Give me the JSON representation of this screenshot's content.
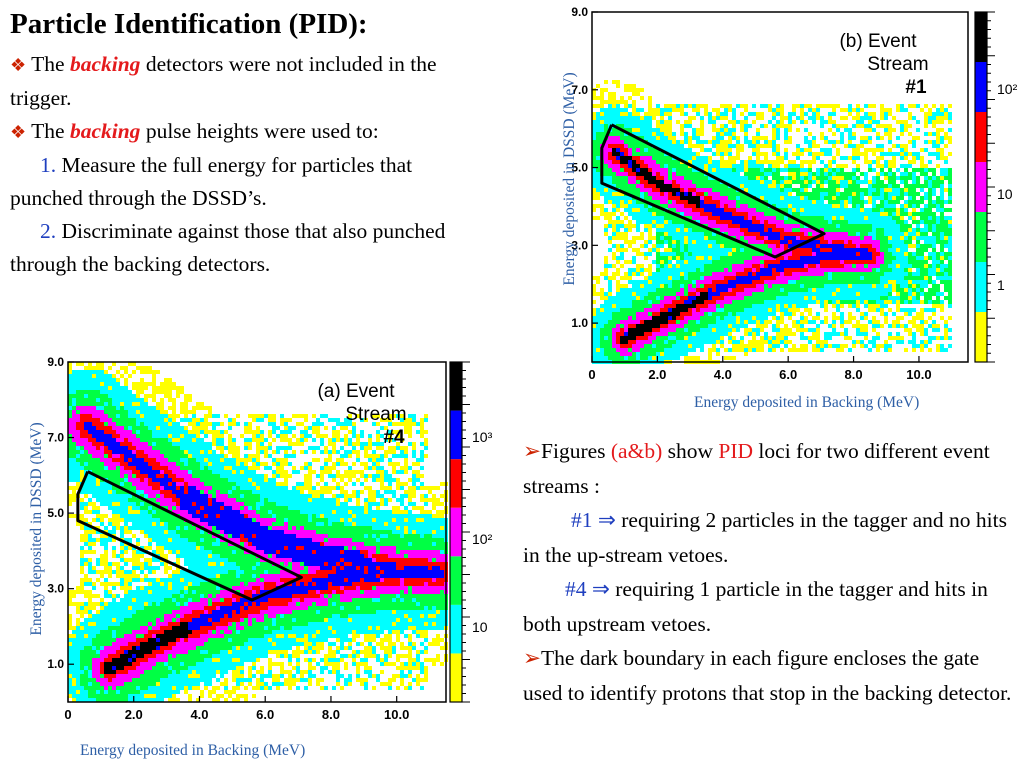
{
  "title": "Particle Identification (PID):",
  "left_text": {
    "b1_pre": "The ",
    "b1_em": "backing",
    "b1_post": " detectors were not included in the trigger.",
    "b2_pre": "The ",
    "b2_em": "backing",
    "b2_post": " pulse heights were used to:",
    "n1_num": "1.",
    "n1_text": " Measure the full energy for particles that punched through the DSSD’s.",
    "n2_num": "2.",
    "n2_text": " Discriminate against those that also punched through the backing detectors."
  },
  "right_text": {
    "f_pre": "Figures ",
    "f_ab": "(a&b)",
    "f_mid": " show ",
    "f_pid": "PID",
    "f_post": " loci for two different event streams :",
    "s1_label": "#1 ⇒",
    "s1_text": " requiring 2 particles in the tagger and no hits in the up-stream vetoes.",
    "s4_label": "#4 ⇒",
    "s4_text": " requiring 1 particle in the tagger and hits in both upstream vetoes.",
    "d_text": "The dark boundary in each figure encloses the gate used to identify protons that stop in the backing detector."
  },
  "chart_data": [
    {
      "type": "heatmap",
      "title": "(b) Event Stream #1",
      "title_lines": [
        "(b) Event",
        "Stream",
        "#1"
      ],
      "xlabel": "Energy deposited in Backing (MeV)",
      "ylabel": "Energy deposited in DSSD (MeV)",
      "xlim": [
        0,
        11.5
      ],
      "ylim": [
        0,
        9.0
      ],
      "x_ticks": [
        0,
        2.0,
        4.0,
        6.0,
        8.0,
        10.0
      ],
      "x_tick_labels": [
        "0",
        "2.0",
        "4.0",
        "6.0",
        "8.0",
        "10.0"
      ],
      "y_ticks": [
        1.0,
        3.0,
        5.0,
        7.0,
        9.0
      ],
      "y_tick_labels": [
        "1.0",
        "3.0",
        "5.0",
        "7.0",
        "9.0"
      ],
      "colorbar_labels": [
        "10²",
        "10",
        "1"
      ],
      "colors": [
        "#ffff00",
        "#00ffff",
        "#00ff44",
        "#ff00ff",
        "#ff0000",
        "#0000ff",
        "#000000"
      ],
      "gate": [
        [
          0.6,
          6.1
        ],
        [
          0.3,
          5.5
        ],
        [
          0.3,
          4.6
        ],
        [
          5.6,
          2.7
        ],
        [
          7.1,
          3.3
        ],
        [
          0.6,
          6.1
        ]
      ],
      "loci": [
        {
          "name": "upper",
          "points": [
            [
              0.7,
              5.4
            ],
            [
              2.0,
              4.6
            ],
            [
              4.0,
              3.8
            ],
            [
              6.0,
              3.1
            ],
            [
              7.5,
              2.9
            ],
            [
              8.5,
              2.75
            ]
          ]
        },
        {
          "name": "lower",
          "points": [
            [
              1.0,
              0.6
            ],
            [
              2.0,
              1.05
            ],
            [
              3.0,
              1.5
            ],
            [
              4.0,
              1.9
            ],
            [
              5.5,
              2.4
            ],
            [
              7.0,
              2.7
            ],
            [
              8.5,
              2.75
            ]
          ]
        }
      ]
    },
    {
      "type": "heatmap",
      "title": "(a) Event Stream #4",
      "title_lines": [
        "(a) Event",
        "Stream",
        "#4"
      ],
      "xlabel": "Energy deposited in Backing (MeV)",
      "ylabel": "Energy deposited in DSSD (MeV)",
      "xlim": [
        0,
        11.5
      ],
      "ylim": [
        0,
        9.0
      ],
      "x_ticks": [
        0,
        2.0,
        4.0,
        6.0,
        8.0,
        10.0
      ],
      "x_tick_labels": [
        "0",
        "2.0",
        "4.0",
        "6.0",
        "8.0",
        "10.0"
      ],
      "y_ticks": [
        1.0,
        3.0,
        5.0,
        7.0,
        9.0
      ],
      "y_tick_labels": [
        "1.0",
        "3.0",
        "5.0",
        "7.0",
        "9.0"
      ],
      "colorbar_labels": [
        "10³",
        "10²",
        "10"
      ],
      "colors": [
        "#ffff00",
        "#00ffff",
        "#00ff44",
        "#ff00ff",
        "#ff0000",
        "#0000ff",
        "#000000"
      ],
      "gate": [
        [
          0.6,
          6.1
        ],
        [
          0.3,
          5.5
        ],
        [
          0.3,
          4.8
        ],
        [
          5.6,
          2.7
        ],
        [
          7.1,
          3.3
        ],
        [
          0.6,
          6.1
        ]
      ],
      "loci": [
        {
          "name": "upper",
          "points": [
            [
              0.6,
              7.3
            ],
            [
              2.0,
              6.4
            ],
            [
              4.0,
              5.2
            ],
            [
              6.0,
              4.3
            ],
            [
              8.0,
              3.8
            ],
            [
              10.0,
              3.5
            ],
            [
              11.3,
              3.4
            ]
          ]
        },
        {
          "name": "lower",
          "points": [
            [
              1.3,
              0.9
            ],
            [
              2.5,
              1.5
            ],
            [
              4.0,
              2.1
            ],
            [
              6.0,
              2.8
            ],
            [
              8.0,
              3.2
            ],
            [
              10.0,
              3.45
            ],
            [
              11.3,
              3.4
            ]
          ]
        }
      ]
    }
  ]
}
